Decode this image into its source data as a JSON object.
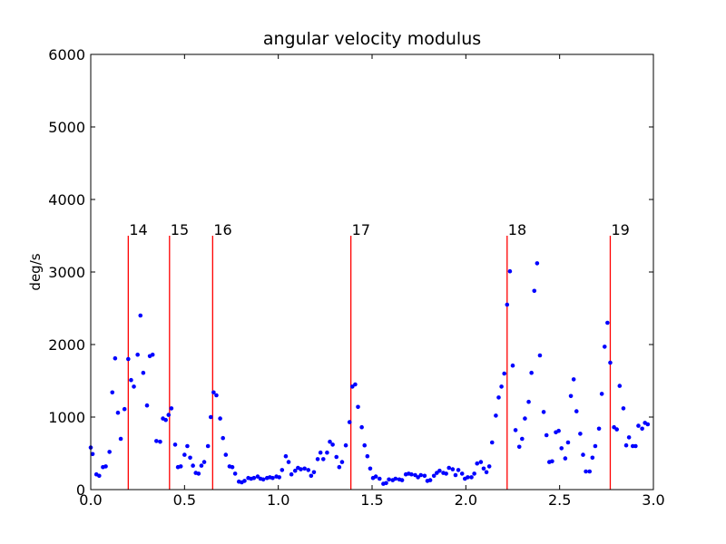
{
  "chart_data": {
    "type": "scatter",
    "title": "angular velocity modulus",
    "xlabel": "",
    "ylabel": "deg/s",
    "xlim": [
      0.0,
      3.0
    ],
    "ylim": [
      0,
      6000
    ],
    "xticks": [
      "0.0",
      "0.5",
      "1.0",
      "1.5",
      "2.0",
      "2.5",
      "3.0"
    ],
    "yticks": [
      "0",
      "1000",
      "2000",
      "3000",
      "4000",
      "5000",
      "6000"
    ],
    "grid": false,
    "point_color": "#0000ff",
    "marker_color": "#ff0000",
    "markers": [
      {
        "label": "14",
        "x": 0.2,
        "top": 3500
      },
      {
        "label": "15",
        "x": 0.42,
        "top": 3500
      },
      {
        "label": "16",
        "x": 0.65,
        "top": 3500
      },
      {
        "label": "17",
        "x": 1.387,
        "top": 3500
      },
      {
        "label": "18",
        "x": 2.22,
        "top": 3500
      },
      {
        "label": "19",
        "x": 2.77,
        "top": 3500
      }
    ],
    "series": [
      {
        "points": [
          [
            0.0,
            580
          ],
          [
            0.01,
            490
          ],
          [
            0.03,
            210
          ],
          [
            0.045,
            190
          ],
          [
            0.065,
            310
          ],
          [
            0.08,
            320
          ],
          [
            0.1,
            520
          ],
          [
            0.115,
            1340
          ],
          [
            0.13,
            1810
          ],
          [
            0.145,
            1060
          ],
          [
            0.16,
            700
          ],
          [
            0.18,
            1110
          ],
          [
            0.2,
            1800
          ],
          [
            0.215,
            1510
          ],
          [
            0.23,
            1420
          ],
          [
            0.25,
            1860
          ],
          [
            0.265,
            2400
          ],
          [
            0.28,
            1610
          ],
          [
            0.3,
            1160
          ],
          [
            0.315,
            1840
          ],
          [
            0.33,
            1860
          ],
          [
            0.35,
            670
          ],
          [
            0.37,
            660
          ],
          [
            0.385,
            980
          ],
          [
            0.4,
            960
          ],
          [
            0.415,
            1030
          ],
          [
            0.43,
            1120
          ],
          [
            0.45,
            620
          ],
          [
            0.465,
            310
          ],
          [
            0.48,
            320
          ],
          [
            0.5,
            480
          ],
          [
            0.515,
            600
          ],
          [
            0.53,
            440
          ],
          [
            0.545,
            330
          ],
          [
            0.56,
            230
          ],
          [
            0.575,
            220
          ],
          [
            0.59,
            330
          ],
          [
            0.605,
            380
          ],
          [
            0.625,
            600
          ],
          [
            0.64,
            1000
          ],
          [
            0.655,
            1340
          ],
          [
            0.67,
            1300
          ],
          [
            0.69,
            980
          ],
          [
            0.705,
            710
          ],
          [
            0.72,
            480
          ],
          [
            0.74,
            320
          ],
          [
            0.755,
            310
          ],
          [
            0.77,
            220
          ],
          [
            0.79,
            110
          ],
          [
            0.805,
            100
          ],
          [
            0.82,
            120
          ],
          [
            0.84,
            160
          ],
          [
            0.855,
            150
          ],
          [
            0.87,
            160
          ],
          [
            0.89,
            180
          ],
          [
            0.905,
            150
          ],
          [
            0.92,
            140
          ],
          [
            0.94,
            160
          ],
          [
            0.955,
            170
          ],
          [
            0.97,
            160
          ],
          [
            0.99,
            180
          ],
          [
            1.005,
            170
          ],
          [
            1.02,
            270
          ],
          [
            1.04,
            460
          ],
          [
            1.055,
            380
          ],
          [
            1.07,
            210
          ],
          [
            1.09,
            260
          ],
          [
            1.105,
            300
          ],
          [
            1.12,
            280
          ],
          [
            1.14,
            290
          ],
          [
            1.16,
            270
          ],
          [
            1.175,
            190
          ],
          [
            1.19,
            240
          ],
          [
            1.21,
            420
          ],
          [
            1.225,
            510
          ],
          [
            1.24,
            420
          ],
          [
            1.26,
            510
          ],
          [
            1.275,
            660
          ],
          [
            1.29,
            620
          ],
          [
            1.31,
            450
          ],
          [
            1.325,
            310
          ],
          [
            1.34,
            380
          ],
          [
            1.36,
            610
          ],
          [
            1.38,
            930
          ],
          [
            1.395,
            1420
          ],
          [
            1.41,
            1450
          ],
          [
            1.425,
            1140
          ],
          [
            1.445,
            860
          ],
          [
            1.46,
            610
          ],
          [
            1.475,
            460
          ],
          [
            1.49,
            290
          ],
          [
            1.505,
            160
          ],
          [
            1.52,
            180
          ],
          [
            1.54,
            150
          ],
          [
            1.56,
            80
          ],
          [
            1.575,
            90
          ],
          [
            1.59,
            140
          ],
          [
            1.61,
            130
          ],
          [
            1.625,
            150
          ],
          [
            1.645,
            140
          ],
          [
            1.66,
            130
          ],
          [
            1.68,
            210
          ],
          [
            1.695,
            220
          ],
          [
            1.71,
            210
          ],
          [
            1.73,
            200
          ],
          [
            1.745,
            170
          ],
          [
            1.76,
            200
          ],
          [
            1.78,
            190
          ],
          [
            1.795,
            120
          ],
          [
            1.81,
            130
          ],
          [
            1.83,
            190
          ],
          [
            1.845,
            230
          ],
          [
            1.86,
            260
          ],
          [
            1.88,
            230
          ],
          [
            1.895,
            220
          ],
          [
            1.91,
            300
          ],
          [
            1.93,
            280
          ],
          [
            1.945,
            200
          ],
          [
            1.96,
            270
          ],
          [
            1.98,
            220
          ],
          [
            1.995,
            150
          ],
          [
            2.01,
            170
          ],
          [
            2.03,
            170
          ],
          [
            2.045,
            220
          ],
          [
            2.06,
            360
          ],
          [
            2.08,
            380
          ],
          [
            2.095,
            290
          ],
          [
            2.11,
            240
          ],
          [
            2.125,
            320
          ],
          [
            2.14,
            650
          ],
          [
            2.16,
            1020
          ],
          [
            2.175,
            1270
          ],
          [
            2.19,
            1420
          ],
          [
            2.205,
            1600
          ],
          [
            2.22,
            2550
          ],
          [
            2.235,
            3010
          ],
          [
            2.25,
            1710
          ],
          [
            2.265,
            820
          ],
          [
            2.285,
            590
          ],
          [
            2.3,
            700
          ],
          [
            2.315,
            980
          ],
          [
            2.335,
            1210
          ],
          [
            2.35,
            1610
          ],
          [
            2.365,
            2740
          ],
          [
            2.38,
            3120
          ],
          [
            2.395,
            1850
          ],
          [
            2.415,
            1070
          ],
          [
            2.43,
            750
          ],
          [
            2.445,
            380
          ],
          [
            2.46,
            390
          ],
          [
            2.48,
            790
          ],
          [
            2.495,
            810
          ],
          [
            2.51,
            570
          ],
          [
            2.53,
            430
          ],
          [
            2.545,
            650
          ],
          [
            2.56,
            1290
          ],
          [
            2.575,
            1520
          ],
          [
            2.59,
            1080
          ],
          [
            2.61,
            770
          ],
          [
            2.625,
            480
          ],
          [
            2.64,
            250
          ],
          [
            2.66,
            250
          ],
          [
            2.675,
            440
          ],
          [
            2.69,
            600
          ],
          [
            2.71,
            840
          ],
          [
            2.725,
            1320
          ],
          [
            2.74,
            1970
          ],
          [
            2.755,
            2300
          ],
          [
            2.77,
            1750
          ],
          [
            2.79,
            860
          ],
          [
            2.805,
            830
          ],
          [
            2.82,
            1430
          ],
          [
            2.84,
            1120
          ],
          [
            2.855,
            610
          ],
          [
            2.87,
            720
          ],
          [
            2.89,
            600
          ],
          [
            2.905,
            600
          ],
          [
            2.92,
            880
          ],
          [
            2.94,
            840
          ],
          [
            2.955,
            920
          ],
          [
            2.97,
            900
          ]
        ]
      }
    ]
  }
}
